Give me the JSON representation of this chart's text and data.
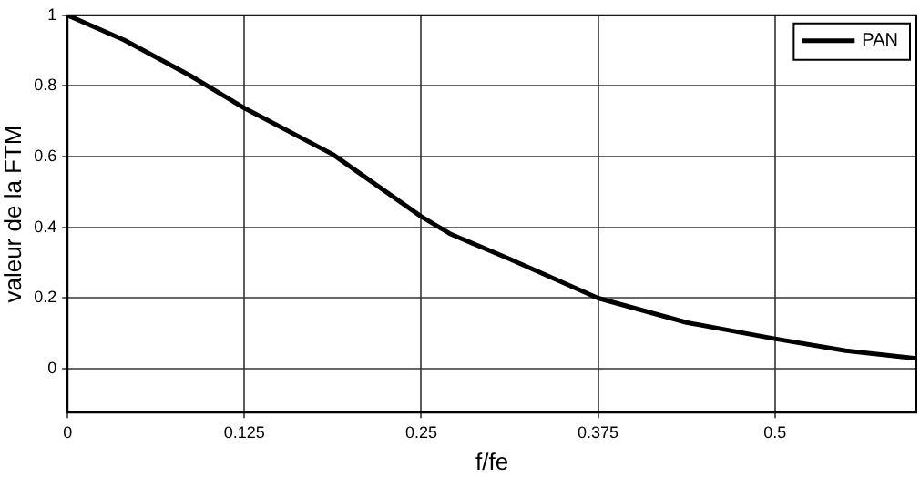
{
  "chart_data": {
    "type": "line",
    "xlabel": "f/fe",
    "ylabel": "valeur de la FTM",
    "xlim": [
      0,
      0.6
    ],
    "xticks": [
      0,
      0.125,
      0.25,
      0.375,
      0.5
    ],
    "ylim": [
      -0.125,
      1
    ],
    "yticks": [
      0,
      0.2,
      0.4,
      0.6,
      0.8,
      1
    ],
    "grid": true,
    "legend": "top right",
    "series": [
      {
        "name": "PAN",
        "color": "#000000",
        "x": [
          0,
          0.04,
          0.0863,
          0.125,
          0.1875,
          0.25,
          0.271,
          0.3125,
          0.375,
          0.4375,
          0.5,
          0.55,
          0.6
        ],
        "values": [
          1,
          0.93,
          0.83,
          0.737,
          0.606,
          0.43,
          0.38,
          0.31,
          0.199,
          0.13,
          0.084,
          0.05,
          0.028
        ]
      }
    ]
  }
}
